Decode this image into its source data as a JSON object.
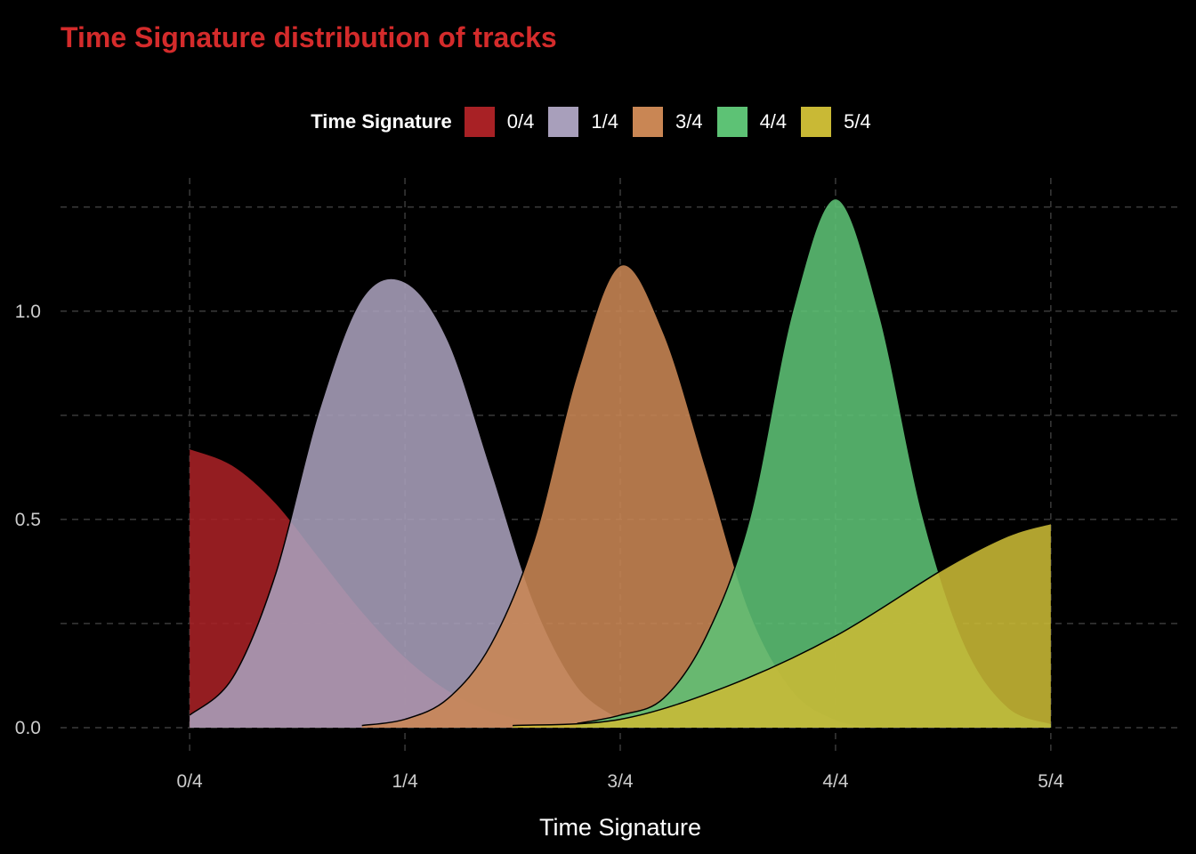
{
  "chart_data": {
    "type": "area",
    "title": "Time Signature distribution of tracks",
    "xlabel": "Time Signature",
    "ylabel": "",
    "x_categories": [
      "0/4",
      "1/4",
      "3/4",
      "4/4",
      "5/4"
    ],
    "y_ticks": [
      "0.0",
      "0.5",
      "1.0"
    ],
    "y_tick_values": [
      0,
      0.5,
      1.0
    ],
    "ylim": [
      -0.03,
      1.32
    ],
    "xlim": [
      -0.6,
      4.6
    ],
    "grid": true,
    "legend": {
      "title": "Time Signature",
      "position": "top",
      "entries": [
        "0/4",
        "1/4",
        "3/4",
        "4/4",
        "5/4"
      ]
    },
    "series": [
      {
        "name": "0/4",
        "color": "#a82125",
        "x": [
          0,
          0.2,
          0.4,
          0.6,
          0.8,
          1.0,
          1.2,
          1.4,
          1.6,
          1.8,
          2.0
        ],
        "values": [
          0.67,
          0.63,
          0.54,
          0.41,
          0.28,
          0.17,
          0.09,
          0.04,
          0.015,
          0.005,
          0.0
        ]
      },
      {
        "name": "1/4",
        "color": "#a89fbb",
        "x": [
          0,
          0.2,
          0.4,
          0.6,
          0.8,
          1.0,
          1.2,
          1.4,
          1.6,
          1.8,
          2.0
        ],
        "values": [
          0.03,
          0.12,
          0.37,
          0.76,
          1.03,
          1.07,
          0.93,
          0.62,
          0.3,
          0.1,
          0.02
        ]
      },
      {
        "name": "3/4",
        "color": "#c98654",
        "x": [
          0.8,
          1.0,
          1.2,
          1.4,
          1.6,
          1.8,
          2.0,
          2.2,
          2.4,
          2.6,
          2.8,
          3.0,
          3.2
        ],
        "values": [
          0.005,
          0.02,
          0.07,
          0.2,
          0.45,
          0.85,
          1.11,
          0.95,
          0.62,
          0.28,
          0.09,
          0.02,
          0.0
        ]
      },
      {
        "name": "4/4",
        "color": "#5dc275",
        "x": [
          1.8,
          2.0,
          2.2,
          2.4,
          2.6,
          2.8,
          3.0,
          3.2,
          3.4,
          3.6,
          3.8,
          4.0
        ],
        "values": [
          0.01,
          0.03,
          0.07,
          0.22,
          0.5,
          1.0,
          1.27,
          1.0,
          0.52,
          0.2,
          0.05,
          0.01
        ]
      },
      {
        "name": "5/4",
        "color": "#c9b935",
        "x": [
          1.5,
          2.0,
          2.5,
          3.0,
          3.5,
          3.8,
          4.0
        ],
        "values": [
          0.005,
          0.02,
          0.1,
          0.22,
          0.38,
          0.46,
          0.49
        ]
      }
    ]
  }
}
